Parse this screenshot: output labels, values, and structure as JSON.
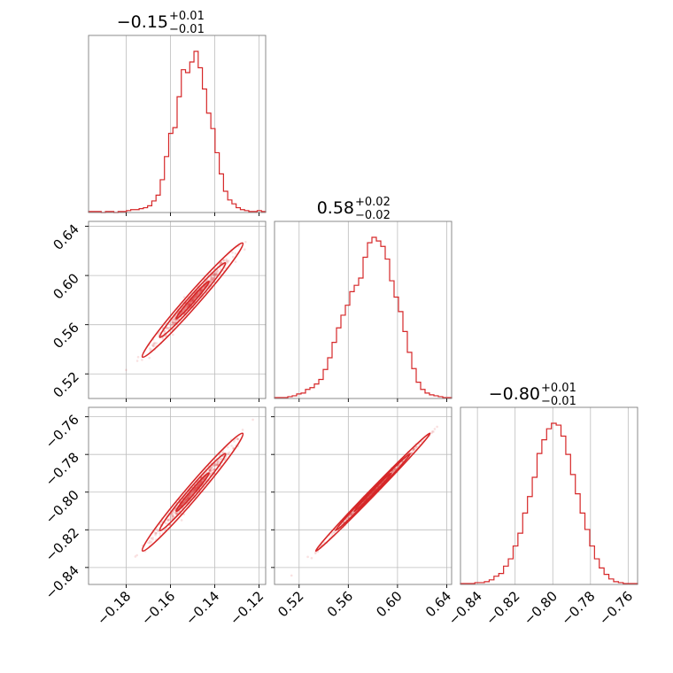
{
  "chart_data": {
    "type": "corner",
    "color": "#d62728",
    "parameters": [
      {
        "title": {
          "value": "−0.15",
          "upper": "+0.01",
          "lower": "−0.01"
        },
        "range": [
          -0.197,
          -0.117
        ],
        "ticks": [
          -0.18,
          -0.16,
          -0.14,
          -0.12
        ],
        "tick_labels": [
          "−0.18",
          "−0.16",
          "−0.14",
          "−0.12"
        ]
      },
      {
        "title": {
          "value": "0.58",
          "upper": "+0.02",
          "lower": "−0.02"
        },
        "range": [
          0.5,
          0.644
        ],
        "ticks": [
          0.52,
          0.56,
          0.6,
          0.64
        ],
        "tick_labels": [
          "0.52",
          "0.56",
          "0.60",
          "0.64"
        ]
      },
      {
        "title": {
          "value": "−0.80",
          "upper": "+0.01",
          "lower": "−0.01"
        },
        "range": [
          -0.849,
          -0.755
        ],
        "ticks": [
          -0.84,
          -0.82,
          -0.8,
          -0.78,
          -0.76
        ],
        "tick_labels": [
          "−0.84",
          "−0.82",
          "−0.80",
          "−0.78",
          "−0.76"
        ]
      }
    ],
    "histograms": [
      {
        "param": 0,
        "counts": [
          1,
          1,
          1,
          0,
          1,
          1,
          0,
          1,
          1,
          2,
          3,
          3,
          4,
          5,
          7,
          12,
          18,
          34,
          58,
          82,
          88,
          120,
          148,
          145,
          156,
          167,
          150,
          128,
          103,
          87,
          62,
          40,
          22,
          13,
          9,
          5,
          3,
          2,
          1,
          1,
          2,
          1
        ]
      },
      {
        "param": 1,
        "counts": [
          1,
          1,
          1,
          2,
          3,
          5,
          6,
          10,
          12,
          16,
          21,
          32,
          45,
          62,
          78,
          92,
          103,
          118,
          125,
          133,
          156,
          172,
          178,
          174,
          168,
          154,
          130,
          112,
          96,
          74,
          51,
          33,
          18,
          10,
          6,
          4,
          3,
          2,
          1,
          1
        ]
      },
      {
        "param": 2,
        "counts": [
          1,
          1,
          1,
          2,
          2,
          3,
          5,
          9,
          12,
          20,
          28,
          42,
          56,
          78,
          96,
          117,
          143,
          158,
          170,
          176,
          174,
          162,
          142,
          120,
          99,
          78,
          60,
          42,
          28,
          18,
          11,
          6,
          3,
          2,
          1,
          1,
          1
        ]
      }
    ],
    "pairs": [
      {
        "x_param": 0,
        "y_param": 1,
        "correlation": 0.985,
        "contour_levels": [
          0.39,
          0.86,
          0.99
        ]
      },
      {
        "x_param": 0,
        "y_param": 2,
        "correlation": 0.985,
        "contour_levels": [
          0.39,
          0.86,
          0.99
        ]
      },
      {
        "x_param": 1,
        "y_param": 2,
        "correlation": 0.997,
        "contour_levels": [
          0.39,
          0.86,
          0.99
        ]
      }
    ],
    "medians": [
      -0.15,
      0.58,
      -0.8
    ],
    "sigmas": [
      0.0075,
      0.0153,
      0.0103
    ],
    "grid": true
  }
}
